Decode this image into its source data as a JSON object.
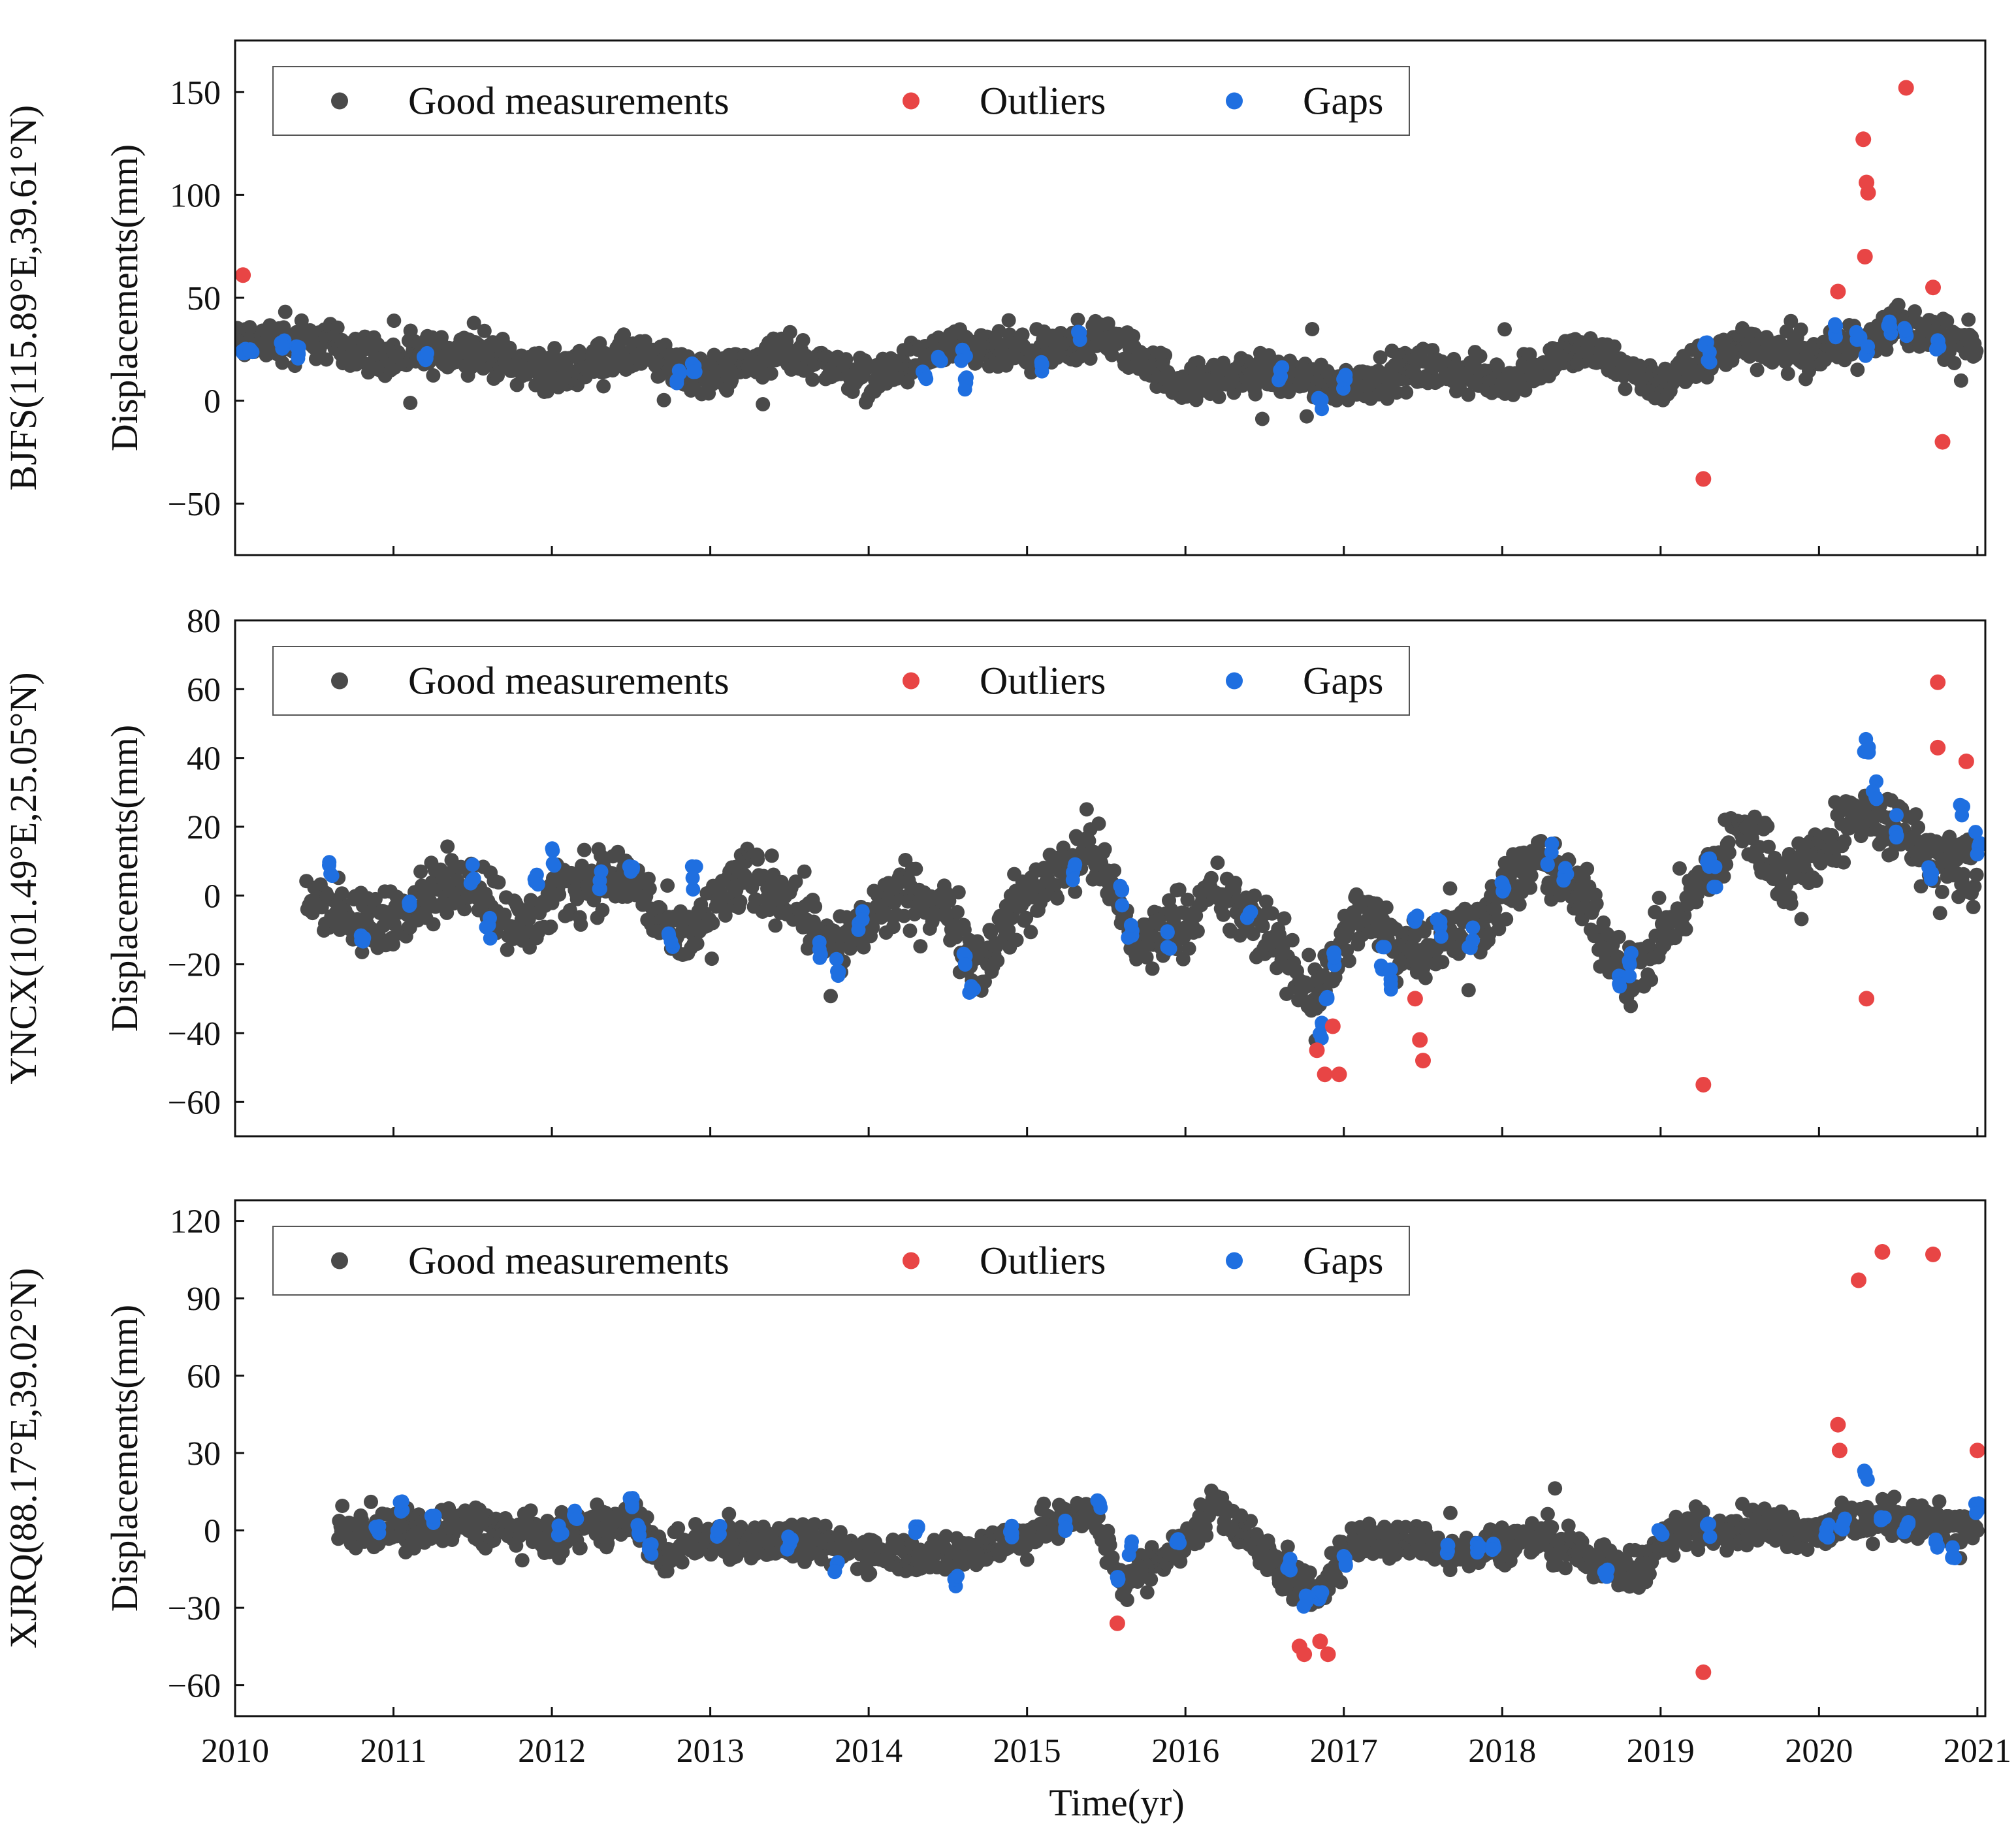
{
  "figure": {
    "xlabel": "Time(yr)",
    "x_ticks": [
      "2010",
      "2011",
      "2012",
      "2013",
      "2014",
      "2015",
      "2016",
      "2017",
      "2018",
      "2019",
      "2020",
      "2021"
    ],
    "legend": {
      "good_label": "Good measurements",
      "outlier_label": "Outliers",
      "gap_label": "Gaps"
    },
    "colors": {
      "good": "#4a4a4a",
      "outlier": "#e84545",
      "gap": "#1f6fe0",
      "axis": "#111111"
    }
  },
  "chart_data": [
    {
      "type": "scatter",
      "station": "BJFS",
      "ylabel": "BJFS(115.89°E,39.61°N)  Displacements(mm)",
      "ylabel_station": "BJFS(115.89°E,39.61°N)",
      "ylabel_units": "Displacements(mm)",
      "xlim": [
        2010,
        2021.05
      ],
      "ylim": [
        -75,
        175
      ],
      "y_ticks": [
        -50,
        0,
        50,
        100,
        150
      ],
      "good_trend": [
        [
          2010.0,
          28
        ],
        [
          2010.5,
          30
        ],
        [
          2011.0,
          20
        ],
        [
          2011.5,
          25
        ],
        [
          2012.0,
          13
        ],
        [
          2012.5,
          22
        ],
        [
          2013.0,
          12
        ],
        [
          2013.5,
          24
        ],
        [
          2014.0,
          10
        ],
        [
          2014.5,
          25
        ],
        [
          2015.0,
          22
        ],
        [
          2015.5,
          30
        ],
        [
          2016.0,
          8
        ],
        [
          2016.5,
          14
        ],
        [
          2017.0,
          8
        ],
        [
          2017.5,
          16
        ],
        [
          2018.0,
          10
        ],
        [
          2018.5,
          25
        ],
        [
          2019.0,
          8
        ],
        [
          2019.5,
          28
        ],
        [
          2020.0,
          22
        ],
        [
          2020.5,
          38
        ],
        [
          2021.0,
          25
        ]
      ],
      "good_spread": 14,
      "gaps": [
        [
          2010.05,
          25
        ],
        [
          2010.1,
          26
        ],
        [
          2010.3,
          26
        ],
        [
          2010.4,
          24
        ],
        [
          2011.2,
          23
        ],
        [
          2012.8,
          12
        ],
        [
          2012.9,
          15
        ],
        [
          2014.35,
          14
        ],
        [
          2014.45,
          20
        ],
        [
          2014.6,
          22
        ],
        [
          2014.62,
          8
        ],
        [
          2015.1,
          16
        ],
        [
          2015.33,
          30
        ],
        [
          2016.6,
          13
        ],
        [
          2016.85,
          -2
        ],
        [
          2017.0,
          9
        ],
        [
          2019.28,
          27
        ],
        [
          2019.3,
          22
        ],
        [
          2020.1,
          34
        ],
        [
          2020.25,
          30
        ],
        [
          2020.3,
          25
        ],
        [
          2020.45,
          35
        ],
        [
          2020.55,
          32
        ],
        [
          2020.75,
          26
        ]
      ],
      "outliers": [
        [
          2010.05,
          61
        ],
        [
          2019.27,
          -38
        ],
        [
          2020.12,
          53
        ],
        [
          2020.28,
          127
        ],
        [
          2020.3,
          106
        ],
        [
          2020.31,
          101
        ],
        [
          2020.29,
          70
        ],
        [
          2020.55,
          152
        ],
        [
          2020.72,
          55
        ],
        [
          2020.78,
          -20
        ]
      ]
    },
    {
      "type": "scatter",
      "station": "YNCX",
      "ylabel": "YNCX(101.49°E,25.05°N)  Displacements(mm)",
      "ylabel_station": "YNCX(101.49°E,25.05°N)",
      "ylabel_units": "Displacements(mm)",
      "xlim": [
        2010,
        2021.05
      ],
      "ylim": [
        -70,
        80
      ],
      "y_ticks": [
        -60,
        -40,
        -20,
        0,
        20,
        40,
        60,
        80
      ],
      "good_start": 2010.45,
      "good_trend": [
        [
          2010.5,
          0
        ],
        [
          2010.8,
          -10
        ],
        [
          2011.2,
          0
        ],
        [
          2011.5,
          5
        ],
        [
          2011.8,
          -10
        ],
        [
          2012.2,
          5
        ],
        [
          2012.5,
          5
        ],
        [
          2012.8,
          -15
        ],
        [
          2013.2,
          5
        ],
        [
          2013.5,
          0
        ],
        [
          2013.8,
          -15
        ],
        [
          2014.2,
          0
        ],
        [
          2014.5,
          -5
        ],
        [
          2014.7,
          -20
        ],
        [
          2015.0,
          0
        ],
        [
          2015.4,
          15
        ],
        [
          2015.7,
          -15
        ],
        [
          2016.2,
          0
        ],
        [
          2016.5,
          -10
        ],
        [
          2016.8,
          -30
        ],
        [
          2017.1,
          -5
        ],
        [
          2017.4,
          -15
        ],
        [
          2017.8,
          -10
        ],
        [
          2018.2,
          10
        ],
        [
          2018.5,
          0
        ],
        [
          2018.8,
          -25
        ],
        [
          2019.2,
          0
        ],
        [
          2019.5,
          20
        ],
        [
          2019.8,
          5
        ],
        [
          2020.3,
          25
        ],
        [
          2020.6,
          15
        ],
        [
          2021.0,
          5
        ]
      ],
      "good_spread": 14,
      "gaps": [
        [
          2010.6,
          7
        ],
        [
          2010.8,
          -12
        ],
        [
          2011.1,
          -2
        ],
        [
          2011.5,
          6
        ],
        [
          2011.6,
          -10
        ],
        [
          2011.9,
          4
        ],
        [
          2012.0,
          12
        ],
        [
          2012.3,
          4
        ],
        [
          2012.5,
          10
        ],
        [
          2012.75,
          -12
        ],
        [
          2012.9,
          5
        ],
        [
          2013.7,
          -15
        ],
        [
          2013.8,
          -20
        ],
        [
          2013.95,
          -7
        ],
        [
          2014.6,
          -20
        ],
        [
          2014.65,
          -25
        ],
        [
          2015.3,
          8
        ],
        [
          2015.6,
          0
        ],
        [
          2015.65,
          -12
        ],
        [
          2015.9,
          -12
        ],
        [
          2016.4,
          -3
        ],
        [
          2016.85,
          -40
        ],
        [
          2016.9,
          -30
        ],
        [
          2016.95,
          -20
        ],
        [
          2017.25,
          -18
        ],
        [
          2017.3,
          -25
        ],
        [
          2017.45,
          -8
        ],
        [
          2017.6,
          -10
        ],
        [
          2017.8,
          -12
        ],
        [
          2018.0,
          3
        ],
        [
          2018.3,
          12
        ],
        [
          2018.4,
          5
        ],
        [
          2018.75,
          -25
        ],
        [
          2018.8,
          -20
        ],
        [
          2019.3,
          10
        ],
        [
          2019.35,
          5
        ],
        [
          2020.3,
          42
        ],
        [
          2020.35,
          30
        ],
        [
          2020.5,
          20
        ],
        [
          2020.7,
          5
        ],
        [
          2020.9,
          25
        ],
        [
          2021.0,
          15
        ]
      ],
      "outliers": [
        [
          2016.83,
          -45
        ],
        [
          2016.88,
          -52
        ],
        [
          2016.93,
          -38
        ],
        [
          2016.97,
          -52
        ],
        [
          2017.45,
          -30
        ],
        [
          2017.48,
          -42
        ],
        [
          2017.5,
          -48
        ],
        [
          2019.27,
          -55
        ],
        [
          2020.3,
          -30
        ],
        [
          2020.75,
          62
        ],
        [
          2020.75,
          43
        ],
        [
          2020.93,
          39
        ]
      ]
    },
    {
      "type": "scatter",
      "station": "XJRQ",
      "ylabel": "XJRQ(88.17°E,39.02°N)  Displacements(mm)",
      "ylabel_station": "XJRQ(88.17°E,39.02°N)",
      "ylabel_units": "Displacements(mm)",
      "xlim": [
        2010,
        2021.05
      ],
      "ylim": [
        -72,
        128
      ],
      "y_ticks": [
        -60,
        -30,
        0,
        30,
        60,
        90,
        120
      ],
      "good_start": 2010.65,
      "good_trend": [
        [
          2010.7,
          0
        ],
        [
          2011.0,
          0
        ],
        [
          2011.5,
          2
        ],
        [
          2012.0,
          -3
        ],
        [
          2012.5,
          5
        ],
        [
          2012.7,
          -10
        ],
        [
          2013.0,
          -3
        ],
        [
          2013.5,
          -5
        ],
        [
          2014.0,
          -8
        ],
        [
          2014.5,
          -10
        ],
        [
          2015.0,
          -2
        ],
        [
          2015.4,
          8
        ],
        [
          2015.6,
          -20
        ],
        [
          2016.0,
          -5
        ],
        [
          2016.2,
          12
        ],
        [
          2016.5,
          -10
        ],
        [
          2016.8,
          -25
        ],
        [
          2017.1,
          -3
        ],
        [
          2017.5,
          -5
        ],
        [
          2017.8,
          -8
        ],
        [
          2018.2,
          -3
        ],
        [
          2018.5,
          -8
        ],
        [
          2018.8,
          -18
        ],
        [
          2019.1,
          0
        ],
        [
          2019.5,
          2
        ],
        [
          2020.0,
          0
        ],
        [
          2020.5,
          5
        ],
        [
          2021.0,
          0
        ]
      ],
      "good_spread": 11,
      "gaps": [
        [
          2010.9,
          0
        ],
        [
          2011.05,
          10
        ],
        [
          2011.25,
          3
        ],
        [
          2012.15,
          5
        ],
        [
          2012.5,
          10
        ],
        [
          2012.55,
          0
        ],
        [
          2012.62,
          -7
        ],
        [
          2012.05,
          0
        ],
        [
          2013.05,
          0
        ],
        [
          2013.5,
          -5
        ],
        [
          2013.8,
          -15
        ],
        [
          2014.3,
          -1
        ],
        [
          2014.55,
          -20
        ],
        [
          2014.9,
          0
        ],
        [
          2015.25,
          2
        ],
        [
          2015.45,
          10
        ],
        [
          2015.57,
          -17
        ],
        [
          2015.65,
          -7
        ],
        [
          2015.95,
          -5
        ],
        [
          2016.65,
          -13
        ],
        [
          2016.75,
          -27
        ],
        [
          2016.85,
          -25
        ],
        [
          2017.0,
          -12
        ],
        [
          2017.65,
          -7
        ],
        [
          2017.85,
          -7
        ],
        [
          2017.95,
          -5
        ],
        [
          2018.65,
          -17
        ],
        [
          2019.0,
          0
        ],
        [
          2019.3,
          0
        ],
        [
          2020.05,
          0
        ],
        [
          2020.15,
          3
        ],
        [
          2020.3,
          22
        ],
        [
          2020.4,
          5
        ],
        [
          2020.55,
          2
        ],
        [
          2020.75,
          -5
        ],
        [
          2020.85,
          -8
        ],
        [
          2021.0,
          8
        ]
      ],
      "outliers": [
        [
          2015.57,
          -36
        ],
        [
          2016.72,
          -45
        ],
        [
          2016.75,
          -48
        ],
        [
          2016.85,
          -43
        ],
        [
          2016.9,
          -48
        ],
        [
          2019.27,
          -55
        ],
        [
          2020.12,
          41
        ],
        [
          2020.13,
          31
        ],
        [
          2020.25,
          97
        ],
        [
          2020.4,
          108
        ],
        [
          2020.72,
          107
        ],
        [
          2021.0,
          31
        ]
      ]
    }
  ]
}
